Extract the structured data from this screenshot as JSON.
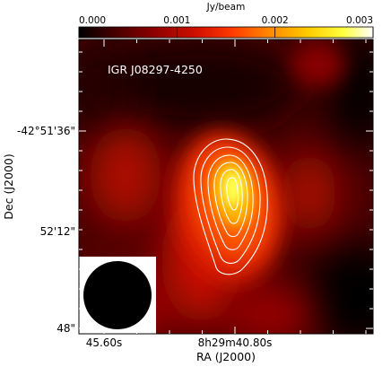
{
  "chart_data": {
    "type": "heatmap",
    "annotation": "IGR J08297-4250",
    "xlabel": "RA (J2000)",
    "ylabel": "Dec (J2000)",
    "x_ticks": [
      "45.60s",
      "8h29m40.80s"
    ],
    "y_ticks": [
      "-42°51'36\"",
      "52'12\"",
      "48\""
    ],
    "colorbar": {
      "label": "Jy/beam",
      "min": 0.0,
      "max": 0.003,
      "ticks": [
        "0.000",
        "0.001",
        "0.002",
        "0.003"
      ],
      "colormap": [
        "#000000",
        "#3a0000",
        "#8a0000",
        "#d01000",
        "#ff3a00",
        "#ff8a00",
        "#ffcc00",
        "#ffff40",
        "#ffffff"
      ]
    },
    "peak_flux": 0.0023,
    "contour_levels": [
      0.0012,
      0.0014,
      0.0016,
      0.0018,
      0.002,
      0.0022
    ],
    "contour_color": "#ffffff",
    "beam": "circular",
    "beam_color": "#000000",
    "beam_box_color": "#ffffff"
  }
}
